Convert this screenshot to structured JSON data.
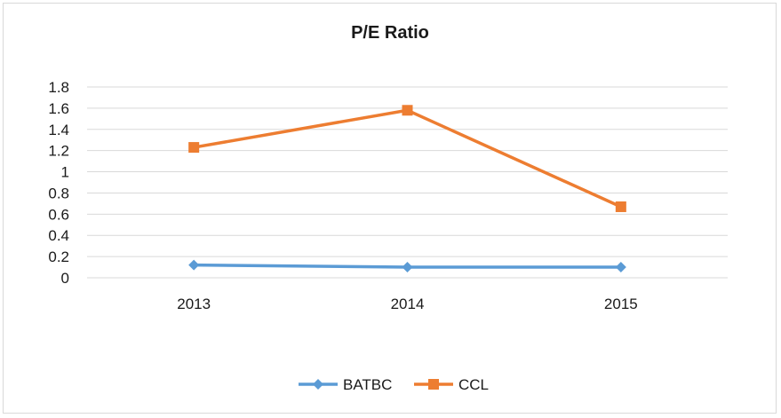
{
  "chart_data": {
    "type": "line",
    "title": "P/E Ratio",
    "xlabel": "",
    "ylabel": "",
    "categories": [
      "2013",
      "2014",
      "2015"
    ],
    "ylim": [
      0,
      1.8
    ],
    "yticks": [
      "0",
      "0.2",
      "0.4",
      "0.6",
      "0.8",
      "1",
      "1.2",
      "1.4",
      "1.6",
      "1.8"
    ],
    "grid": true,
    "legend_position": "bottom",
    "series": [
      {
        "name": "BATBC",
        "values": [
          0.12,
          0.1,
          0.1
        ],
        "color": "#5b9bd5",
        "marker": "diamond"
      },
      {
        "name": "CCL",
        "values": [
          1.23,
          1.58,
          0.67
        ],
        "color": "#ed7d31",
        "marker": "square"
      }
    ]
  }
}
